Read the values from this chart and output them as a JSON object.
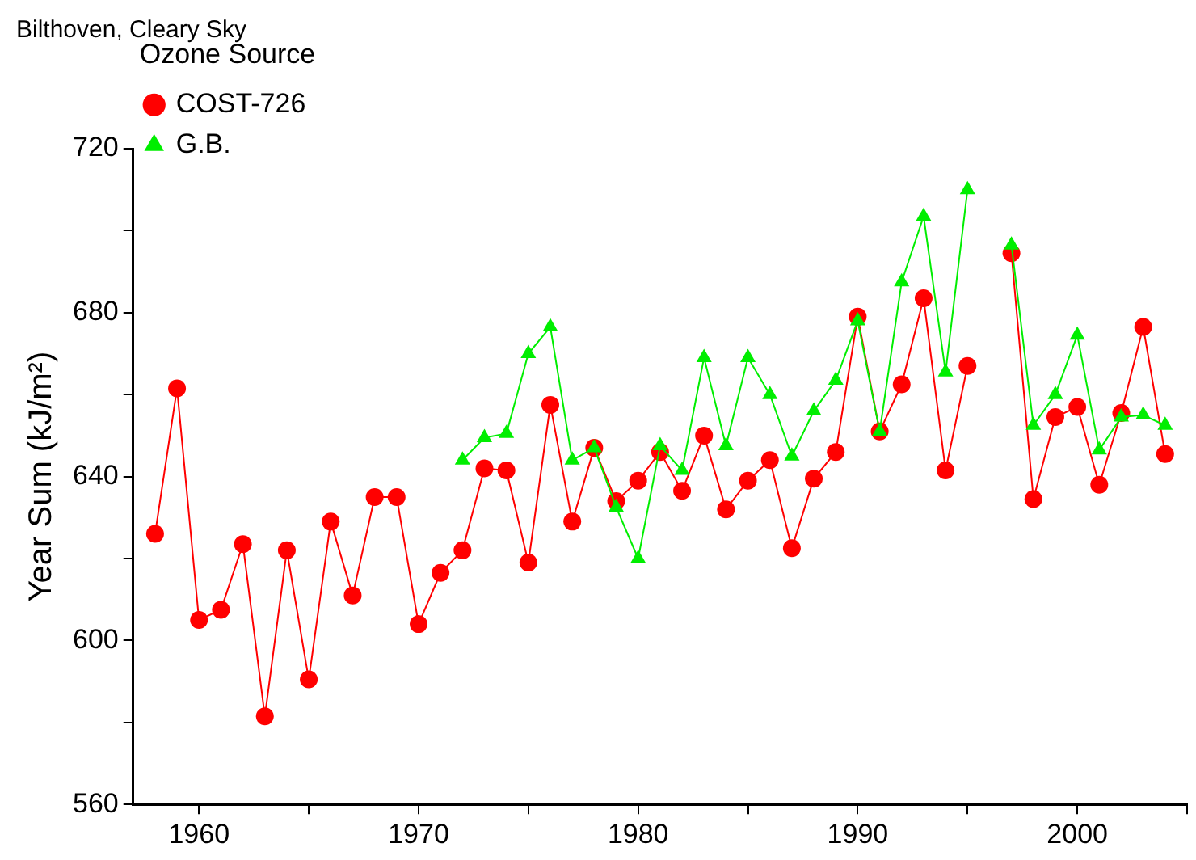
{
  "chart_data": {
    "type": "line",
    "title": "Bilthoven, Cleary Sky",
    "legend_title": "Ozone Source",
    "ylabel": "Year Sum (kJ/m²)",
    "x": [
      1958,
      1959,
      1960,
      1961,
      1962,
      1963,
      1964,
      1965,
      1966,
      1967,
      1968,
      1969,
      1970,
      1971,
      1972,
      1973,
      1974,
      1975,
      1976,
      1977,
      1978,
      1979,
      1980,
      1981,
      1982,
      1983,
      1984,
      1985,
      1986,
      1987,
      1988,
      1989,
      1990,
      1991,
      1992,
      1993,
      1994,
      1995,
      1996,
      1997,
      1998,
      1999,
      2000,
      2001,
      2002,
      2003,
      2004
    ],
    "series": [
      {
        "name": "COST-726",
        "color": "#ff0000",
        "marker": "circle",
        "values": [
          626,
          661.5,
          605,
          607.5,
          623.5,
          581.5,
          622,
          590.5,
          629,
          611,
          635,
          635,
          604,
          616.5,
          622,
          642,
          641.5,
          619,
          657.5,
          629,
          647,
          634,
          639,
          646,
          636.5,
          650,
          632,
          639,
          644,
          622.5,
          639.5,
          646,
          679,
          651,
          662.5,
          683.5,
          641.5,
          667,
          null,
          694.5,
          634.5,
          654.5,
          657,
          638,
          655.5,
          676.5,
          645.5
        ]
      },
      {
        "name": "G.B.",
        "color": "#00ee00",
        "marker": "triangle",
        "x": [
          1972,
          1973,
          1974,
          1975,
          1976,
          1977,
          1978,
          1979,
          1980,
          1981,
          1982,
          1983,
          1984,
          1985,
          1986,
          1987,
          1988,
          1989,
          1990,
          1991,
          1992,
          1993,
          1994,
          1995,
          1996,
          1997,
          1998,
          1999,
          2000,
          2001,
          2002,
          2003,
          2004
        ],
        "values": [
          644,
          649.5,
          650.5,
          670,
          676.5,
          644,
          647,
          632.5,
          620,
          647.5,
          641.5,
          669,
          647.5,
          669,
          660,
          645,
          656,
          663.5,
          678,
          651,
          687.5,
          703.5,
          665.5,
          710,
          null,
          696.5,
          652.5,
          660,
          674.5,
          646.5,
          654.5,
          655,
          652.5
        ]
      }
    ],
    "xlim": [
      1957,
      2005
    ],
    "xticks": [
      1960,
      {
        "value": 1965,
        "label": null
      },
      1970,
      {
        "value": 1975,
        "label": null
      },
      1980,
      {
        "value": 1985,
        "label": null
      },
      1990,
      {
        "value": 1995,
        "label": null
      },
      2000,
      {
        "value": 2005,
        "label": null
      }
    ],
    "ylim": [
      560,
      720
    ],
    "yticks": [
      560,
      {
        "value": 580,
        "label": null
      },
      600,
      {
        "value": 620,
        "label": null
      },
      640,
      {
        "value": 660,
        "label": null
      },
      680,
      {
        "value": 700,
        "label": null
      },
      720
    ],
    "grid": false,
    "legend": "top left",
    "line_style": "solid"
  }
}
